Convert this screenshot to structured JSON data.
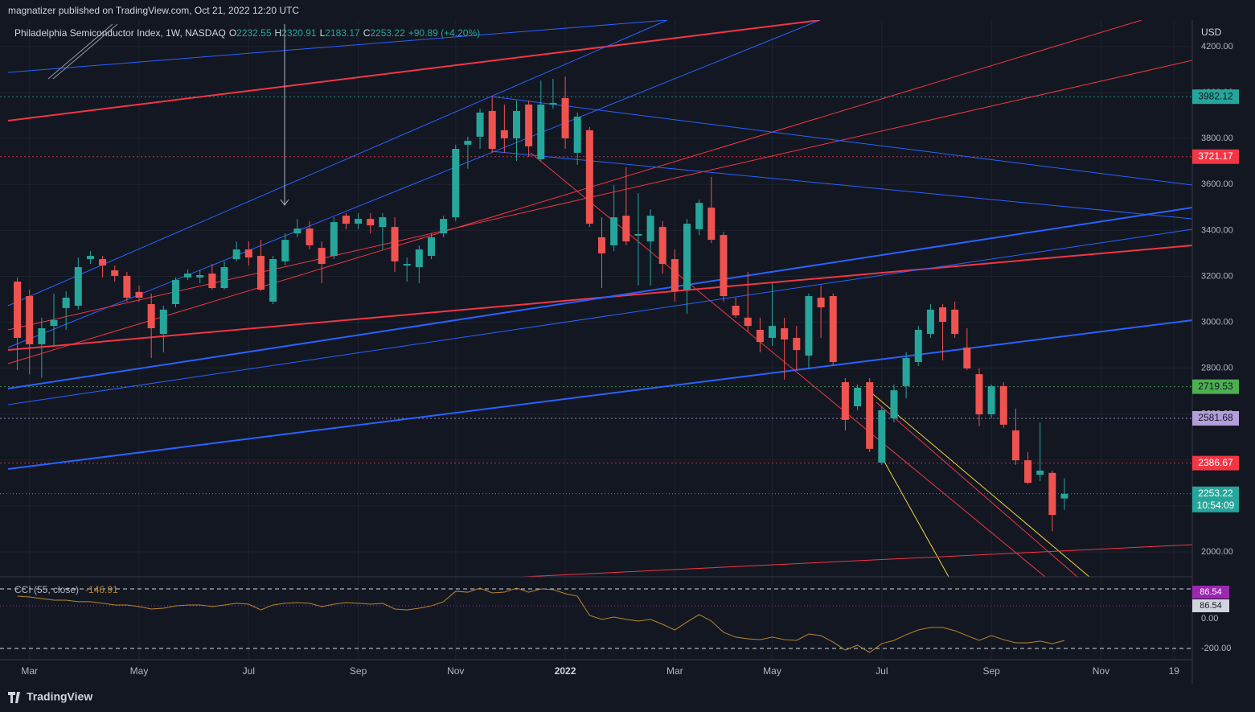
{
  "header": "magnatizer published on TradingView.com, Oct 21, 2022 12:20 UTC",
  "footer": "TradingView",
  "chart_data": {
    "type": "candlestick",
    "title": "Philadelphia Semiconductor Index, 1W, NASDAQ",
    "ohlc_keys": [
      "O",
      "H",
      "L",
      "C"
    ],
    "change": {
      "value": 90.89,
      "label": "+90.89 (+4.20%)"
    },
    "currency": "USD",
    "countdown": "10:54:09",
    "up_color": "#26a69a",
    "down_color": "#ef5350",
    "grid": true,
    "categories": [
      null,
      "Mar",
      null,
      null,
      null,
      null,
      null,
      null,
      null,
      null,
      "May",
      null,
      null,
      null,
      null,
      null,
      null,
      null,
      null,
      "Jul",
      null,
      null,
      null,
      null,
      null,
      null,
      null,
      null,
      "Sep",
      null,
      null,
      null,
      null,
      null,
      null,
      null,
      "Nov",
      null,
      null,
      null,
      null,
      null,
      null,
      null,
      null,
      "2022",
      null,
      null,
      null,
      null,
      null,
      null,
      null,
      null,
      "Mar",
      null,
      null,
      null,
      null,
      null,
      null,
      null,
      "May",
      null,
      null,
      null,
      null,
      null,
      null,
      null,
      null,
      "Jul",
      null,
      null,
      null,
      null,
      null,
      null,
      null,
      null,
      "Sep",
      null,
      null,
      null,
      null,
      null,
      null,
      null,
      null,
      "Nov",
      null,
      null,
      null,
      null,
      null,
      "19",
      null
    ],
    "open": [
      3177,
      3114,
      2904,
      2984,
      3062,
      3072,
      3275,
      3275,
      3226,
      3202,
      3132,
      3079,
      2949,
      3079,
      3195,
      3195,
      3212,
      3149,
      3275,
      3317,
      3289,
      3090,
      3265,
      3387,
      3408,
      3324,
      3289,
      3464,
      3429,
      3450,
      3415,
      3415,
      3247,
      3240,
      3289,
      3387,
      3457,
      3773,
      3808,
      3920,
      3836,
      3801,
      3948,
      3710,
      3948,
      3976,
      3738,
      3836,
      3370,
      3335,
      3464,
      3377,
      3352,
      3415,
      3275,
      3142,
      3405,
      3499,
      3380,
      3072,
      3020,
      2967,
      2932,
      2974,
      2932,
      2855,
      3107,
      3114,
      2739,
      2634,
      2739,
      2389,
      2582,
      2722,
      2827,
      2949,
      3065,
      3055,
      2890,
      2774,
      2599,
      2722,
      2529,
      2399,
      2336,
      2344,
      2232.55,
      null,
      null,
      null,
      null,
      null,
      null,
      null,
      null,
      null,
      null
    ],
    "high": [
      3195,
      3142,
      3020,
      3125,
      3135,
      3282,
      3310,
      3289,
      3247,
      3219,
      3160,
      3125,
      3072,
      3195,
      3230,
      3226,
      3254,
      3265,
      3352,
      3352,
      3359,
      3289,
      3387,
      3450,
      3440,
      3352,
      3457,
      3475,
      3475,
      3475,
      3475,
      3457,
      3282,
      3335,
      3387,
      3464,
      3773,
      3808,
      3930,
      3983,
      3948,
      3965,
      3965,
      4053,
      4060,
      4070,
      3913,
      3850,
      3457,
      3597,
      3675,
      3562,
      3492,
      3440,
      3317,
      3450,
      3534,
      3633,
      3394,
      3107,
      3219,
      3020,
      3170,
      3020,
      2984,
      3125,
      3160,
      3125,
      2757,
      2729,
      2757,
      2634,
      2729,
      2869,
      2984,
      3079,
      3079,
      3090,
      2974,
      2799,
      2729,
      2739,
      2624,
      2435,
      2564,
      2354,
      2320.91,
      null,
      null,
      null,
      null,
      null,
      null,
      null,
      null,
      null,
      null
    ],
    "low": [
      2792,
      2774,
      2757,
      2897,
      2967,
      3055,
      3254,
      3195,
      3177,
      3090,
      3090,
      2844,
      2869,
      3065,
      3184,
      3170,
      3142,
      3142,
      3265,
      3247,
      3135,
      3079,
      3247,
      3370,
      3317,
      3170,
      3275,
      3405,
      3405,
      3387,
      3317,
      3219,
      3177,
      3170,
      3275,
      3370,
      3440,
      3668,
      3755,
      3738,
      3738,
      3703,
      3720,
      3703,
      3930,
      3755,
      3685,
      3415,
      3149,
      3310,
      3335,
      3160,
      3160,
      3212,
      3090,
      3037,
      3380,
      3345,
      3090,
      3020,
      2960,
      2869,
      2897,
      2750,
      2792,
      2799,
      2932,
      2809,
      2529,
      2617,
      2435,
      2379,
      2564,
      2669,
      2809,
      2932,
      2834,
      2932,
      2792,
      2547,
      2582,
      2540,
      2379,
      2294,
      2308,
      2091,
      2183.17,
      null,
      null,
      null,
      null,
      null,
      null,
      null,
      null,
      null,
      null
    ],
    "close": [
      2932,
      2904,
      2974,
      3009,
      3107,
      3240,
      3289,
      3247,
      3202,
      3107,
      3107,
      2974,
      3055,
      3184,
      3212,
      3205,
      3149,
      3240,
      3317,
      3282,
      3142,
      3275,
      3359,
      3408,
      3335,
      3254,
      3436,
      3429,
      3450,
      3422,
      3457,
      3265,
      3254,
      3317,
      3370,
      3450,
      3755,
      3790,
      3913,
      3755,
      3801,
      3920,
      3766,
      3948,
      3955,
      3801,
      3895,
      3429,
      3300,
      3457,
      3352,
      3384,
      3464,
      3254,
      3135,
      3429,
      3520,
      3359,
      3114,
      3030,
      2984,
      2914,
      2984,
      2925,
      2879,
      3114,
      3065,
      2827,
      2575,
      2715,
      2449,
      2617,
      2704,
      2844,
      2967,
      3055,
      3002,
      2949,
      2799,
      2599,
      2722,
      2554,
      2399,
      2301,
      2354,
      2161,
      2253.22,
      null,
      null,
      null,
      null,
      null,
      null,
      null,
      null,
      null,
      null
    ],
    "ylim": [
      1891.5,
      4315.6
    ],
    "yticks": [
      {
        "value": 2000,
        "label": "2000.00"
      },
      {
        "value": 2200,
        "label": "2200.00"
      },
      {
        "value": 2400,
        "label": "2400.00"
      },
      {
        "value": 2600,
        "label": "2600.00"
      },
      {
        "value": 2800,
        "label": "2800.00"
      },
      {
        "value": 3000,
        "label": "3000.00"
      },
      {
        "value": 3200,
        "label": "3200.00"
      },
      {
        "value": 3400,
        "label": "3400.00"
      },
      {
        "value": 3600,
        "label": "3600.00"
      },
      {
        "value": 3800,
        "label": "3800.00"
      },
      {
        "value": 4000,
        "label": "4000.00"
      },
      {
        "value": 4200,
        "label": "4200.00"
      }
    ],
    "price_levels": [
      {
        "value": 3982.12,
        "color": "#26a69a"
      },
      {
        "value": 3721.17,
        "color": "#f23645"
      },
      {
        "value": 2719.53,
        "color": "#4caf50"
      },
      {
        "value": 2581.68,
        "color": "#b39ddb"
      },
      {
        "value": 2386.67,
        "color": "#f23645"
      }
    ],
    "indicator": {
      "name": "CCI (55, close)",
      "color": "#b8862b",
      "ylim": [
        -265,
        254
      ],
      "yticks": [
        {
          "value": 0,
          "label": "0.00"
        },
        {
          "value": -200,
          "label": "-200.00"
        }
      ],
      "bands": [
        200,
        -200
      ],
      "levels": [
        {
          "value": 86.54,
          "color": "#9c27b0"
        },
        {
          "value": 86.54,
          "color": "#d1d4dc"
        }
      ],
      "values": [
        151,
        146,
        135,
        124,
        124,
        114,
        114,
        103,
        92,
        92,
        81,
        65,
        70,
        86,
        92,
        92,
        81,
        92,
        103,
        97,
        59,
        92,
        103,
        108,
        103,
        81,
        97,
        108,
        103,
        97,
        103,
        65,
        59,
        70,
        86,
        114,
        184,
        178,
        205,
        173,
        178,
        205,
        178,
        200,
        195,
        168,
        151,
        22,
        -5,
        11,
        -5,
        -16,
        -5,
        -38,
        -76,
        -22,
        27,
        -16,
        -92,
        -124,
        -135,
        -141,
        -124,
        -141,
        -146,
        -103,
        -114,
        -157,
        -211,
        -178,
        -227,
        -168,
        -146,
        -108,
        -76,
        -59,
        -59,
        -81,
        -114,
        -146,
        -114,
        -141,
        -162,
        -162,
        -151,
        -168,
        -146.91,
        null,
        null,
        null,
        null,
        null,
        null,
        null,
        null,
        null,
        null
      ]
    }
  }
}
